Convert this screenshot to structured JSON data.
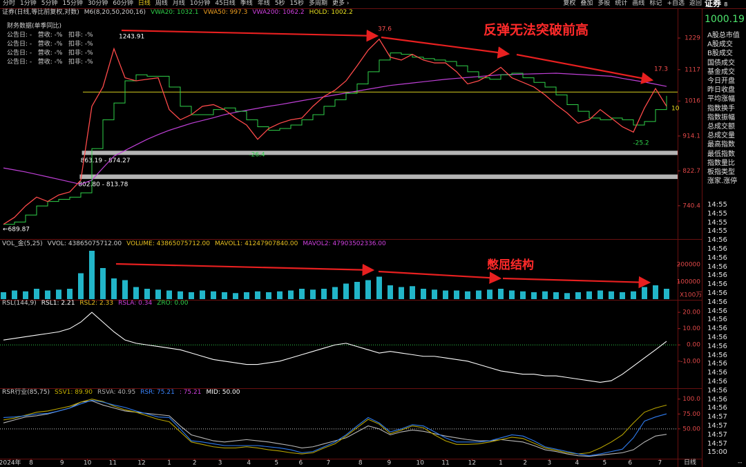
{
  "toolbar": {
    "left": [
      "分时",
      "1分钟",
      "5分钟",
      "15分钟",
      "30分钟",
      "60分钟",
      "日线",
      "周线",
      "月线",
      "10分钟",
      "45日线",
      "季线",
      "年线",
      "5秒",
      "15秒",
      "多周期",
      "更多 ›"
    ],
    "active": 6,
    "right": [
      "复权",
      "叠加",
      "多股",
      "统计",
      "画线",
      "标记",
      "+自选",
      "返回"
    ]
  },
  "finance": {
    "title": "财务数据(单季同比)",
    "rows": [
      "公告日: -   营收: -%   扣非: -%",
      "公告日: -   营收: -%   扣非: -%",
      "公告日: -   营收: -%   扣非: -%",
      "公告日: -   营收: -%   扣非: -%"
    ]
  },
  "headlines": [
    "反弹无法突破前高",
    "憋屈结构"
  ],
  "panels": {
    "main": {
      "title": "证券(日线,等比前复权,对数)",
      "legend": [
        {
          "text": "M6(8,20,50,200,16)",
          "color": "#d0d0d0"
        },
        {
          "text": "VWA20: 1032.1",
          "color": "#2fd24a"
        },
        {
          "text": "VWA50: 997.3",
          "color": "#f0a020"
        },
        {
          "text": "VWA200: 1062.2",
          "color": "#d040e0"
        },
        {
          "text": "HOLD: 1002.2",
          "color": "#e8e020"
        }
      ],
      "log": true,
      "ylim": [
        671,
        1339
      ],
      "yticks": [
        1229,
        1117,
        1016,
        914.1,
        822.7,
        740.4
      ],
      "price": {
        "color": "#ff4a4a",
        "values": [
          700,
          715,
          740,
          760,
          750,
          765,
          772,
          800,
          1000,
          1060,
          1190,
          1090,
          1080,
          1085,
          1090,
          990,
          960,
          975,
          1000,
          1005,
          990,
          965,
          945,
          905,
          935,
          950,
          960,
          965,
          1000,
          1030,
          1050,
          1080,
          1130,
          1185,
          1225,
          1160,
          1150,
          1170,
          1150,
          1140,
          1140,
          1110,
          1070,
          1080,
          1100,
          1125,
          1090,
          1075,
          1060,
          1035,
          1005,
          980,
          950,
          960,
          990,
          965,
          940,
          925,
          995,
          1055,
          1000
        ]
      },
      "vwa20": {
        "color": "#2fd24a",
        "values": [
          700,
          705,
          720,
          740,
          750,
          755,
          760,
          770,
          880,
          960,
          1010,
          1080,
          1100,
          1095,
          1095,
          1060,
          1000,
          975,
          975,
          990,
          995,
          985,
          960,
          940,
          930,
          935,
          945,
          960,
          975,
          1000,
          1020,
          1040,
          1070,
          1110,
          1150,
          1175,
          1170,
          1160,
          1155,
          1150,
          1145,
          1130,
          1110,
          1090,
          1085,
          1100,
          1105,
          1090,
          1075,
          1060,
          1035,
          1005,
          985,
          965,
          960,
          965,
          960,
          945,
          955,
          990,
          1032
        ]
      },
      "vwa200": {
        "color": "#c040d8",
        "values": [
          830,
          825,
          820,
          814,
          808,
          802,
          796,
          790,
          800,
          830,
          860,
          875,
          890,
          905,
          918,
          930,
          940,
          950,
          958,
          966,
          975,
          982,
          988,
          994,
          1000,
          1005,
          1011,
          1017,
          1023,
          1029,
          1035,
          1041,
          1047,
          1053,
          1059,
          1065,
          1069,
          1073,
          1077,
          1081,
          1085,
          1088,
          1091,
          1094,
          1097,
          1100,
          1101,
          1102,
          1103,
          1104,
          1105,
          1103,
          1101,
          1099,
          1097,
          1095,
          1088,
          1082,
          1076,
          1069,
          1062
        ]
      },
      "level": {
        "value": 1044,
        "color": "#d8d020"
      },
      "zones": [
        {
          "low": 863.19,
          "high": 874.27,
          "start": 7.1,
          "label": "863.19 - 874.27"
        },
        {
          "low": 802.8,
          "high": 813.78,
          "start": 6.9,
          "label": "802.80 - 813.78"
        }
      ],
      "annotations": [
        {
          "text": 1243.91,
          "color": "#ffffff"
        },
        {
          "text": "←689.87",
          "color": "#ffffff"
        },
        {
          "text": 37.6,
          "color": "#ff5050"
        },
        {
          "text": 17.3,
          "color": "#ff5050"
        },
        {
          "text": -25.2,
          "color": "#2fd24a"
        },
        {
          "text": -26.4,
          "color": "#2fd24a"
        },
        {
          "text": 10,
          "color": "#e8e020"
        }
      ]
    },
    "volume": {
      "legend": [
        {
          "text": "VOL_金(5,25)",
          "color": "#d0d0d0"
        },
        {
          "text": "VVOL: 43865075712.00",
          "color": "#d0d0d0"
        },
        {
          "text": "VOLUME: 43865075712.00",
          "color": "#e8c020"
        },
        {
          "text": "MAVOL1: 41247907840.00",
          "color": "#e8c020"
        },
        {
          "text": "MAVOL2: 47903502336.00",
          "color": "#d040e0"
        }
      ],
      "ylim": [
        0,
        340000
      ],
      "yticks": [
        200000,
        100000
      ],
      "unit": "X100万",
      "color": "#22b5c8",
      "values": [
        40000,
        50000,
        45000,
        60000,
        50000,
        55000,
        60000,
        150000,
        280000,
        180000,
        120000,
        110000,
        70000,
        60000,
        55000,
        50000,
        45000,
        40000,
        50000,
        45000,
        40000,
        35000,
        40000,
        45000,
        40000,
        45000,
        50000,
        60000,
        55000,
        60000,
        70000,
        90000,
        100000,
        110000,
        130000,
        80000,
        70000,
        75000,
        60000,
        55000,
        50000,
        50000,
        45000,
        50000,
        55000,
        60000,
        50000,
        45000,
        40000,
        45000,
        40000,
        35000,
        40000,
        45000,
        50000,
        45000,
        40000,
        45000,
        70000,
        80000,
        60000
      ]
    },
    "rsl": {
      "legend": [
        {
          "text": "RSL(144,9)",
          "color": "#d0d0d0"
        },
        {
          "text": "RSL1: 2.21",
          "color": "#ffffff"
        },
        {
          "text": "RSL2: 2.33",
          "color": "#e8c020"
        },
        {
          "text": "RSLA: 0.34",
          "color": "#d040e0"
        },
        {
          "text": "ZRO: 0.00",
          "color": "#2fd24a"
        }
      ],
      "ylim": [
        -26.2,
        26.4
      ],
      "yticks": [
        {
          "value": 20,
          "label": "20.00"
        },
        {
          "value": 10,
          "label": "10.00"
        },
        {
          "value": 0,
          "label": "0.00"
        },
        {
          "value": -10,
          "label": "-10.00"
        }
      ],
      "ref_line": {
        "value": 0,
        "color": "#2fd24a"
      },
      "series": [
        {
          "color": "#ffffff",
          "values": [
            3,
            4,
            5,
            6,
            7,
            8,
            10,
            14,
            20,
            14,
            8,
            3,
            1,
            0,
            -1,
            -2,
            -3,
            -5,
            -7,
            -9,
            -10,
            -11,
            -12,
            -12,
            -11,
            -10,
            -8,
            -6,
            -4,
            -2,
            0,
            1,
            -1,
            -3,
            -5,
            -4,
            -5,
            -6,
            -7,
            -7,
            -8,
            -9,
            -10,
            -12,
            -14,
            -16,
            -17,
            -18,
            -18,
            -19,
            -19,
            -20,
            -21,
            -22,
            -23,
            -22,
            -18,
            -13,
            -8,
            -3,
            2.21
          ]
        }
      ]
    },
    "rsr": {
      "legend": [
        {
          "text": "RSR行业(85,75)",
          "color": "#d0d0d0"
        },
        {
          "text": "SSV1: 89.90",
          "color": "#c8b400"
        },
        {
          "text": "RSVA: 40.95",
          "color": "#b0b0b0"
        },
        {
          "text": "RSR: 75.21",
          "color": "#3a86ff"
        },
        {
          "text": ": 75.21",
          "color": "#d040e0"
        },
        {
          "text": "MID: 50.00",
          "color": "#ffffff"
        }
      ],
      "ylim": [
        0,
        117
      ],
      "yticks": [
        {
          "value": 100,
          "label": "100.0"
        },
        {
          "value": 75,
          "label": "75.00"
        },
        {
          "value": 50,
          "label": "50.00"
        }
      ],
      "ref_line": {
        "value": 50,
        "color": "#d0d0d0"
      },
      "series": [
        {
          "color": "#b8b8b8",
          "values": [
            60,
            65,
            70,
            72,
            75,
            80,
            85,
            95,
            97,
            90,
            85,
            80,
            78,
            76,
            74,
            72,
            55,
            40,
            35,
            30,
            28,
            30,
            32,
            30,
            28,
            25,
            22,
            18,
            20,
            25,
            30,
            35,
            45,
            55,
            50,
            40,
            45,
            48,
            46,
            42,
            38,
            35,
            32,
            30,
            30,
            32,
            30,
            28,
            22,
            15,
            12,
            8,
            5,
            4,
            6,
            8,
            10,
            15,
            28,
            38,
            40.95
          ]
        },
        {
          "color": "#b8a400",
          "values": [
            65,
            68,
            73,
            78,
            80,
            84,
            88,
            95,
            100,
            96,
            88,
            82,
            78,
            72,
            66,
            62,
            45,
            28,
            24,
            20,
            18,
            18,
            20,
            18,
            15,
            13,
            10,
            8,
            10,
            18,
            25,
            38,
            52,
            66,
            58,
            42,
            48,
            55,
            52,
            40,
            30,
            24,
            24,
            25,
            28,
            32,
            36,
            34,
            26,
            18,
            14,
            10,
            8,
            10,
            18,
            28,
            40,
            60,
            78,
            85,
            89.9
          ]
        },
        {
          "color": "#2f7cf0",
          "values": [
            69,
            70,
            72,
            75,
            76,
            80,
            85,
            92,
            98,
            95,
            90,
            86,
            80,
            75,
            70,
            69,
            50,
            30,
            28,
            25,
            22,
            22,
            22,
            22,
            20,
            18,
            15,
            10,
            12,
            20,
            28,
            40,
            55,
            69,
            60,
            45,
            50,
            57,
            55,
            45,
            35,
            28,
            28,
            28,
            30,
            35,
            40,
            38,
            30,
            20,
            16,
            12,
            8,
            5,
            8,
            12,
            16,
            35,
            63,
            70,
            75.21
          ]
        }
      ]
    }
  },
  "xaxis": {
    "ticks": [
      {
        "value": 0.6,
        "label": "2024年"
      },
      {
        "value": 2.5,
        "label": "8"
      },
      {
        "value": 5.3,
        "label": "9"
      },
      {
        "value": 7.6,
        "label": "10"
      },
      {
        "value": 9.9,
        "label": "11"
      },
      {
        "value": 12.5,
        "label": "12"
      },
      {
        "value": 15,
        "label": "1"
      },
      {
        "value": 17.3,
        "label": "2"
      },
      {
        "value": 19.6,
        "label": "3"
      },
      {
        "value": 22.2,
        "label": "4"
      },
      {
        "value": 24.7,
        "label": "5"
      },
      {
        "value": 26.9,
        "label": "6"
      },
      {
        "value": 29.4,
        "label": "7"
      },
      {
        "value": 32.3,
        "label": "8"
      },
      {
        "value": 34.9,
        "label": "9"
      },
      {
        "value": 37.7,
        "label": "10"
      },
      {
        "value": 40,
        "label": "11"
      },
      {
        "value": 42.4,
        "label": "12"
      },
      {
        "value": 45,
        "label": "1"
      },
      {
        "value": 47.2,
        "label": "2"
      },
      {
        "value": 49.4,
        "label": "3"
      },
      {
        "value": 51.9,
        "label": "4"
      },
      {
        "value": 54.4,
        "label": "5"
      },
      {
        "value": 56.7,
        "label": "6"
      },
      {
        "value": 59.4,
        "label": "7"
      }
    ]
  },
  "sidebar": {
    "title": "证券",
    "title_suffix": "8",
    "price": 1000.19,
    "items": [
      "A股总市值",
      "A股成交",
      "B股成交",
      "国债成交",
      "基金成交",
      "今日开盘",
      "昨日收盘",
      "平均涨幅",
      "指数换手",
      "指数振幅",
      "总成交额",
      "总成交量",
      "最高指数",
      "最低指数",
      "指数量比",
      "板指类型",
      "涨家.涨停"
    ],
    "times": [
      "14:55",
      "14:55",
      "14:55",
      "14:55",
      "14:56",
      "14:56",
      "14:56",
      "14:56",
      "14:56",
      "14:56",
      "14:56",
      "14:56",
      "14:56",
      "14:56",
      "14:56",
      "14:56",
      "14:56",
      "14:56",
      "14:56",
      "14:56",
      "14:56",
      "14:56",
      "14:56",
      "14:56",
      "14:57",
      "14:57",
      "14:57",
      "14:57",
      "15:00"
    ]
  },
  "footer": {
    "period": "日线",
    "more": "--"
  }
}
